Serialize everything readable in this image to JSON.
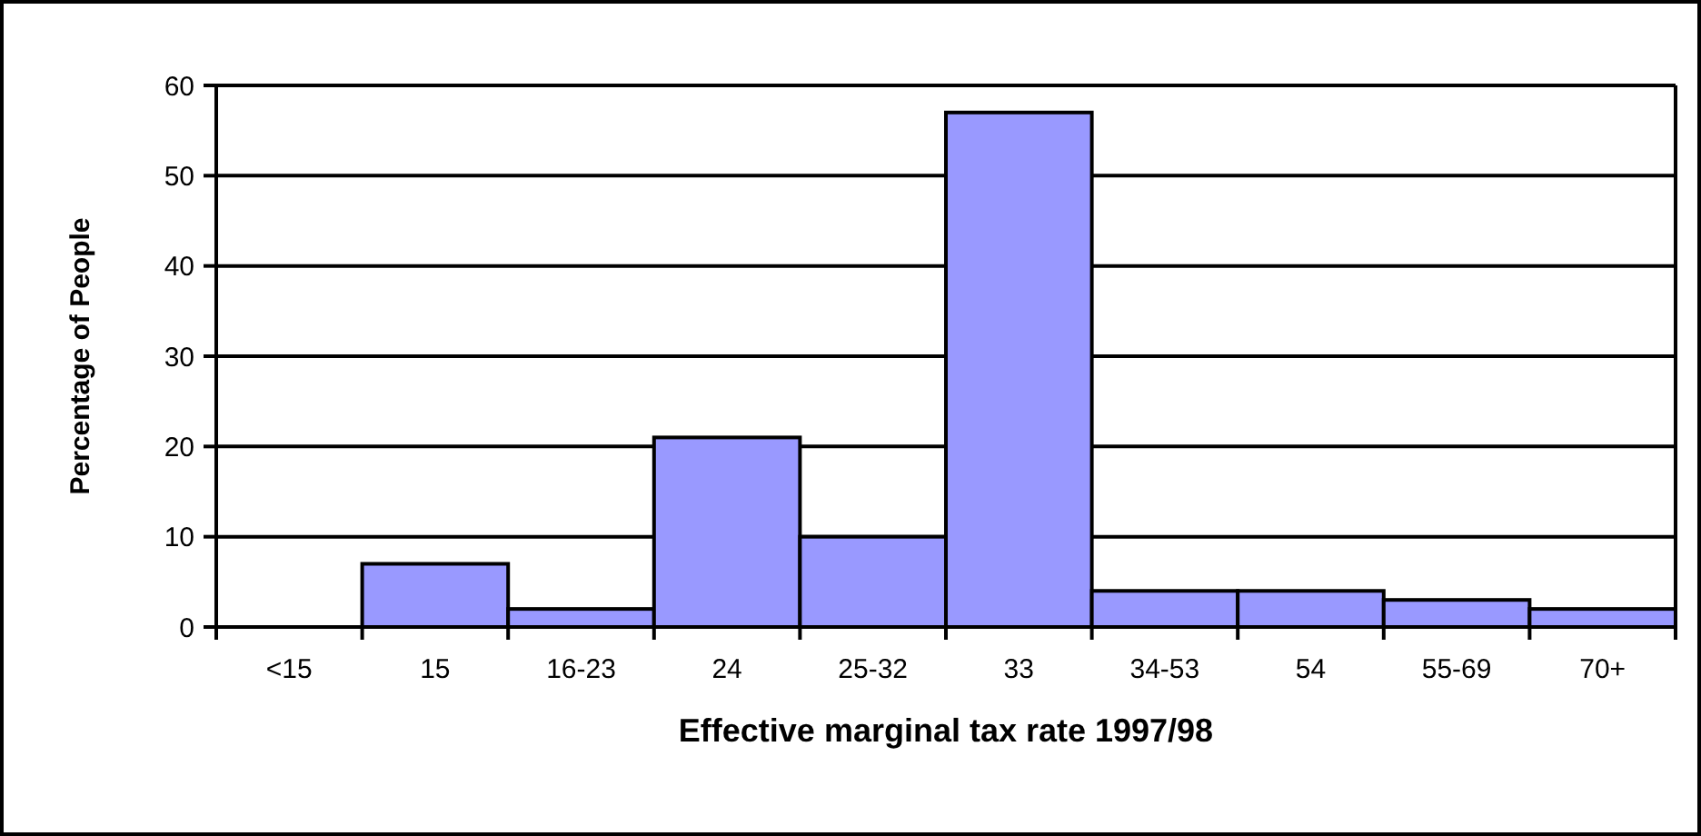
{
  "chart_data": {
    "type": "bar",
    "xlabel": "Effective marginal tax rate 1997/98",
    "ylabel": "Percentage of People",
    "categories": [
      "<15",
      "15",
      "16-23",
      "24",
      "25-32",
      "33",
      "34-53",
      "54",
      "55-69",
      "70+"
    ],
    "values": [
      0,
      7,
      2,
      21,
      10,
      57,
      4,
      4,
      3,
      2
    ],
    "color": "#9999ff",
    "ylim": [
      0,
      60
    ],
    "yticks": [
      0,
      10,
      20,
      30,
      40,
      50,
      60
    ],
    "grid": "y"
  }
}
